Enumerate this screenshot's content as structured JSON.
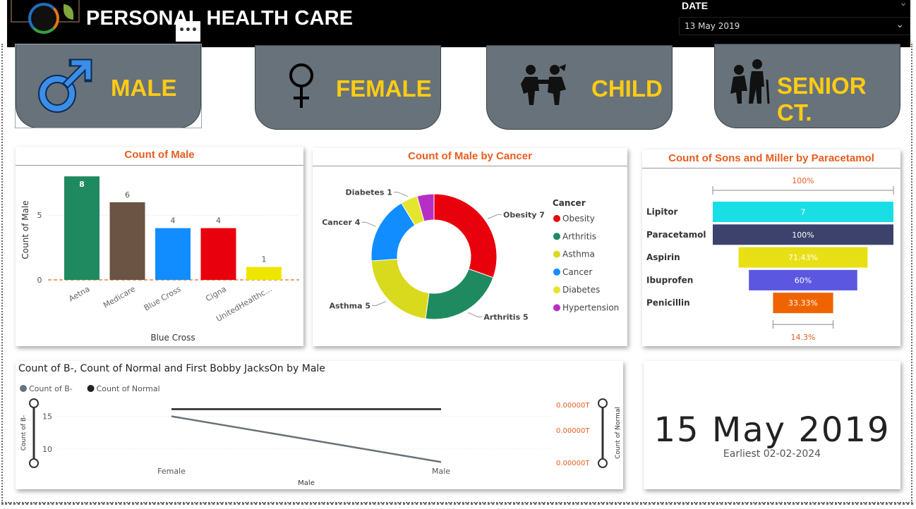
{
  "header": {
    "title": "PERSONAL HEALTH CARE",
    "more_label": "•••",
    "date_slicer": {
      "label": "DATE",
      "value": "13 May 2019"
    }
  },
  "cards": [
    {
      "label": "MALE",
      "icon": "male-symbol-icon"
    },
    {
      "label": "FEMALE",
      "icon": "female-symbol-icon"
    },
    {
      "label": "CHILD",
      "icon": "children-playing-icon"
    },
    {
      "label": "SENIOR CT.",
      "icon": "senior-couple-icon"
    }
  ],
  "colors": {
    "accent": "#e85d1e",
    "card_bg": "#68727a",
    "card_text": "#ffcc12"
  },
  "chart_data": [
    {
      "type": "bar",
      "title": "Count of Male",
      "xlabel": "Blue Cross",
      "ylabel": "Count of Male",
      "categories": [
        "Aetna",
        "Medicare",
        "Blue Cross",
        "Cigna",
        "UnitedHealthc..."
      ],
      "values": [
        8,
        6,
        4,
        4,
        1
      ],
      "colors": [
        "#1f8a5f",
        "#6b5444",
        "#118dff",
        "#e8000c",
        "#efe600"
      ],
      "ylim": [
        0,
        8.5
      ],
      "yticks": [
        0,
        5
      ]
    },
    {
      "type": "pie",
      "title": "Count of Male by Cancer",
      "legend_title": "Cancer",
      "labels": [
        "Obesity",
        "Arthritis",
        "Asthma",
        "Cancer",
        "Diabetes",
        "Hypertension"
      ],
      "values": [
        7,
        5,
        5,
        4,
        1,
        1
      ],
      "colors": [
        "#e8000c",
        "#1f8a5f",
        "#d9d91e",
        "#118dff",
        "#e5e52e",
        "#b72ec4"
      ],
      "slice_labels": [
        "Obesity 7",
        "Arthritis 5",
        "Asthma 5",
        "Cancer 4",
        "Diabetes 1",
        ""
      ]
    },
    {
      "type": "bar",
      "title": "Count of Sons and Miller by Paracetamol",
      "top_label": "100%",
      "bottom_label": "14.3%",
      "categories": [
        "Lipitor",
        "Paracetamol",
        "Aspirin",
        "Ibuprofen",
        "Penicillin"
      ],
      "values": [
        7,
        7,
        5,
        4.2,
        2.33
      ],
      "value_labels": [
        "7",
        "100%",
        "71.43%",
        "60%",
        "33.33%"
      ],
      "colors": [
        "#19dee6",
        "#3c426b",
        "#e8e014",
        "#5b57e0",
        "#f06400"
      ]
    },
    {
      "type": "line",
      "title": "Count of B-, Count of Normal and First Bobby JacksOn by Male",
      "xlabel": "Male",
      "ylabel": "Count of B-",
      "y2label": "Count of Normal",
      "categories": [
        "Female",
        "Male"
      ],
      "yticks": [
        10,
        15
      ],
      "y2ticks": [
        "0.00000T",
        "0.00000T",
        "0.00000T"
      ],
      "series": [
        {
          "name": "Count of B-",
          "values": [
            15,
            8
          ],
          "color": "#68727a"
        },
        {
          "name": "Count of Normal",
          "values": [
            16.1,
            16.1
          ],
          "color": "#222222"
        }
      ],
      "ylim": [
        7.5,
        17
      ]
    }
  ],
  "card_kpi": {
    "value": "15 May 2019",
    "subtitle": "Earliest 02-02-2024"
  }
}
